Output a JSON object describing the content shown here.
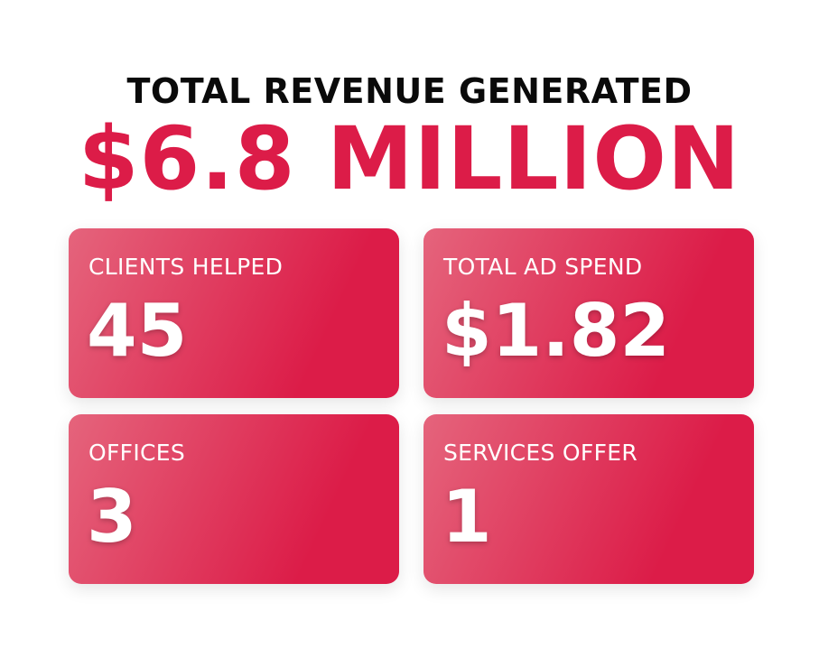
{
  "header": {
    "title": "TOTAL REVENUE GENERATED",
    "amount": "$6.8 MILLION"
  },
  "stats": [
    {
      "label": "CLIENTS HELPED",
      "value": "45"
    },
    {
      "label": "TOTAL AD SPEND",
      "value": "$1.82"
    },
    {
      "label": "OFFICES",
      "value": "3"
    },
    {
      "label": "SERVICES OFFER",
      "value": "1"
    }
  ],
  "colors": {
    "accent": "#dc1c48",
    "card_gradient_start": "#e5647c",
    "card_gradient_end": "#dc1c48",
    "title": "#0a0a0a"
  }
}
